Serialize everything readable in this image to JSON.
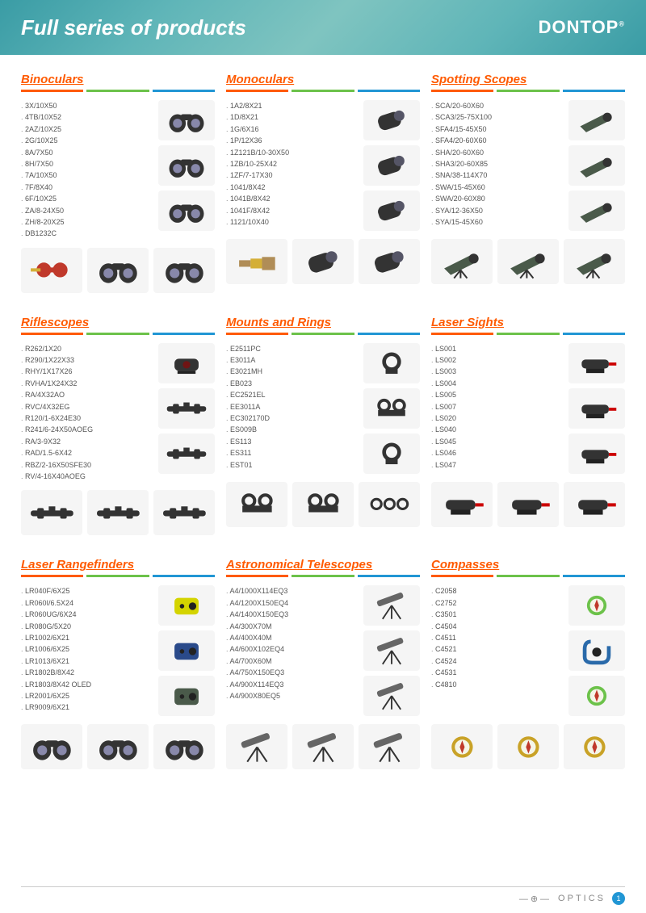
{
  "header": {
    "title": "Full series of products",
    "brand": "DONTOP",
    "brand_mark": "®"
  },
  "colors": {
    "accent": "#ff5a00",
    "rule1": "#ff5a00",
    "rule2": "#6cc24a",
    "rule3": "#2196d4",
    "header_bg_from": "#3a9ca5",
    "header_bg_to": "#5fb5b8",
    "text": "#555555"
  },
  "categories": [
    {
      "title": "Binoculars",
      "items": [
        "3X/10X50",
        "4TB/10X52",
        "2AZ/10X25",
        "2G/10X25",
        "8A/7X50",
        "8H/7X50",
        "7A/10X50",
        "7F/8X40",
        "6F/10X25",
        "ZA/8-24X50",
        "ZH/8-20X25",
        "DB1232C"
      ],
      "side_icons": [
        "binoc",
        "binoc-compact",
        "binoc-big"
      ],
      "bottom_icons": [
        "opera-glass",
        "binoc",
        "binoc-big"
      ]
    },
    {
      "title": "Monoculars",
      "items": [
        "1A2/8X21",
        "1D/8X21",
        "1G/6X16",
        "1P/12X36",
        "1Z121B/10-30X50",
        "1ZB/10-25X42",
        "1ZF/7-17X30",
        "1041/8X42",
        "1041B/8X42",
        "1041F/8X42",
        "1121/10X40"
      ],
      "side_icons": [
        "monoc",
        "monoc",
        "monoc"
      ],
      "bottom_icons": [
        "spyglass",
        "monoc-tripod",
        "monoc-tripod"
      ]
    },
    {
      "title": "Spotting Scopes",
      "items": [
        "SCA/20-60X60",
        "SCA3/25-75X100",
        "SFA4/15-45X50",
        "SFA4/20-60X60",
        "SHA/20-60X60",
        "SHA3/20-60X85",
        "SNA/38-114X70",
        "SWA/15-45X60",
        "SWA/20-60X80",
        "SYA/12-36X50",
        "SYA/15-45X60"
      ],
      "side_icons": [
        "spotting",
        "spotting",
        "spotting"
      ],
      "bottom_icons": [
        "spotting-tripod",
        "spotting-tripod",
        "spotting-tripod"
      ]
    },
    {
      "title": "Riflescopes",
      "items": [
        "R262/1X20",
        "R290/1X22X33",
        "RHY/1X17X26",
        "RVHA/1X24X32",
        "RA/4X32AO",
        "RVC/4X32EG",
        "R120/1-6X24E30",
        "R241/6-24X50AOEG",
        "RA/3-9X32",
        "RAD/1.5-6X42",
        "RBZ/2-16X50SFE30",
        "RV/4-16X40AOEG"
      ],
      "side_icons": [
        "reddot",
        "scope-short",
        "scope-tac"
      ],
      "bottom_icons": [
        "scope-long",
        "scope-long",
        "scope-long"
      ]
    },
    {
      "title": "Mounts and Rings",
      "items": [
        "E2511PC",
        "E3011A",
        "E3021MH",
        "EB023",
        "EC2521EL",
        "EE3011A",
        "EC302170D",
        "ES009B",
        "ES113",
        "ES311",
        "EST01"
      ],
      "side_icons": [
        "ring",
        "mount",
        "ring"
      ],
      "bottom_icons": [
        "mount",
        "mount",
        "rings-set"
      ]
    },
    {
      "title": "Laser Sights",
      "items": [
        "LS001",
        "LS002",
        "LS003",
        "LS004",
        "LS005",
        "LS007",
        "LS020",
        "LS040",
        "LS045",
        "LS046",
        "LS047"
      ],
      "side_icons": [
        "laser-grip",
        "laser-tube",
        "laser-rail"
      ],
      "bottom_icons": [
        "laser-box",
        "laser-box",
        "laser-box"
      ]
    },
    {
      "title": "Laser Rangefinders",
      "items": [
        "LR040F/6X25",
        "LR060I/6.5X24",
        "LR060UG/6X24",
        "LR080G/5X20",
        "LR1002/6X21",
        "LR1006/6X25",
        "LR1013/6X21",
        "LR1802B/8X42",
        "LR1803/8X42 OLED",
        "LR2001/6X25",
        "LR9009/6X21"
      ],
      "side_icons": [
        "rangefinder-y",
        "rangefinder-b",
        "rangefinder-g"
      ],
      "bottom_icons": [
        "binoc",
        "binoc",
        "binoc"
      ]
    },
    {
      "title": "Astronomical Telescopes",
      "items": [
        "A4/1000X114EQ3",
        "A4/1200X150EQ4",
        "A4/1400X150EQ3",
        "A4/300X70M",
        "A4/400X40M",
        "A4/600X102EQ4",
        "A4/700X60M",
        "A4/750X150EQ3",
        "A4/900X114EQ3",
        "A4/900X80EQ5"
      ],
      "side_icons": [
        "telescope",
        "telescope",
        "telescope"
      ],
      "bottom_icons": [
        "telescope",
        "telescope",
        "telescope"
      ]
    },
    {
      "title": "Compasses",
      "items": [
        "C2058",
        "C2752",
        "C3501",
        "C4504",
        "C4511",
        "C4521",
        "C4524",
        "C4531",
        "C4810"
      ],
      "side_icons": [
        "compass-key",
        "carabiner",
        "compass-round"
      ],
      "bottom_icons": [
        "compass-brass",
        "compass-brass",
        "compass-brass"
      ]
    }
  ],
  "footer": {
    "label": "OPTICS",
    "page": "1"
  }
}
